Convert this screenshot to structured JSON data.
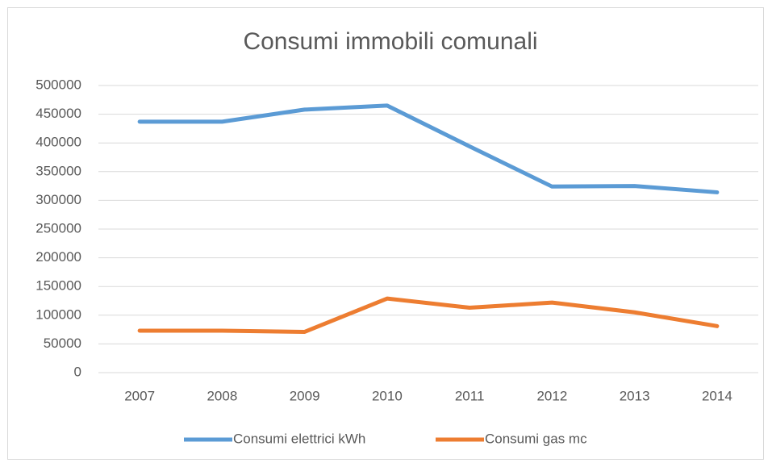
{
  "chart_data": {
    "type": "line",
    "title": "Consumi immobili comunali",
    "categories": [
      "2007",
      "2008",
      "2009",
      "2010",
      "2011",
      "2012",
      "2013",
      "2014"
    ],
    "series": [
      {
        "name": "Consumi elettrici kWh",
        "color": "#5b9bd5",
        "values": [
          437000,
          437000,
          458000,
          465000,
          394000,
          324000,
          325000,
          314000
        ]
      },
      {
        "name": "Consumi gas mc",
        "color": "#ed7d31",
        "values": [
          73000,
          73000,
          71000,
          129000,
          113000,
          122000,
          105000,
          81000
        ]
      }
    ],
    "ylim": [
      0,
      500000
    ],
    "yticks": [
      0,
      50000,
      100000,
      150000,
      200000,
      250000,
      300000,
      350000,
      400000,
      450000,
      500000
    ],
    "grid": true,
    "legend": "bottom"
  }
}
